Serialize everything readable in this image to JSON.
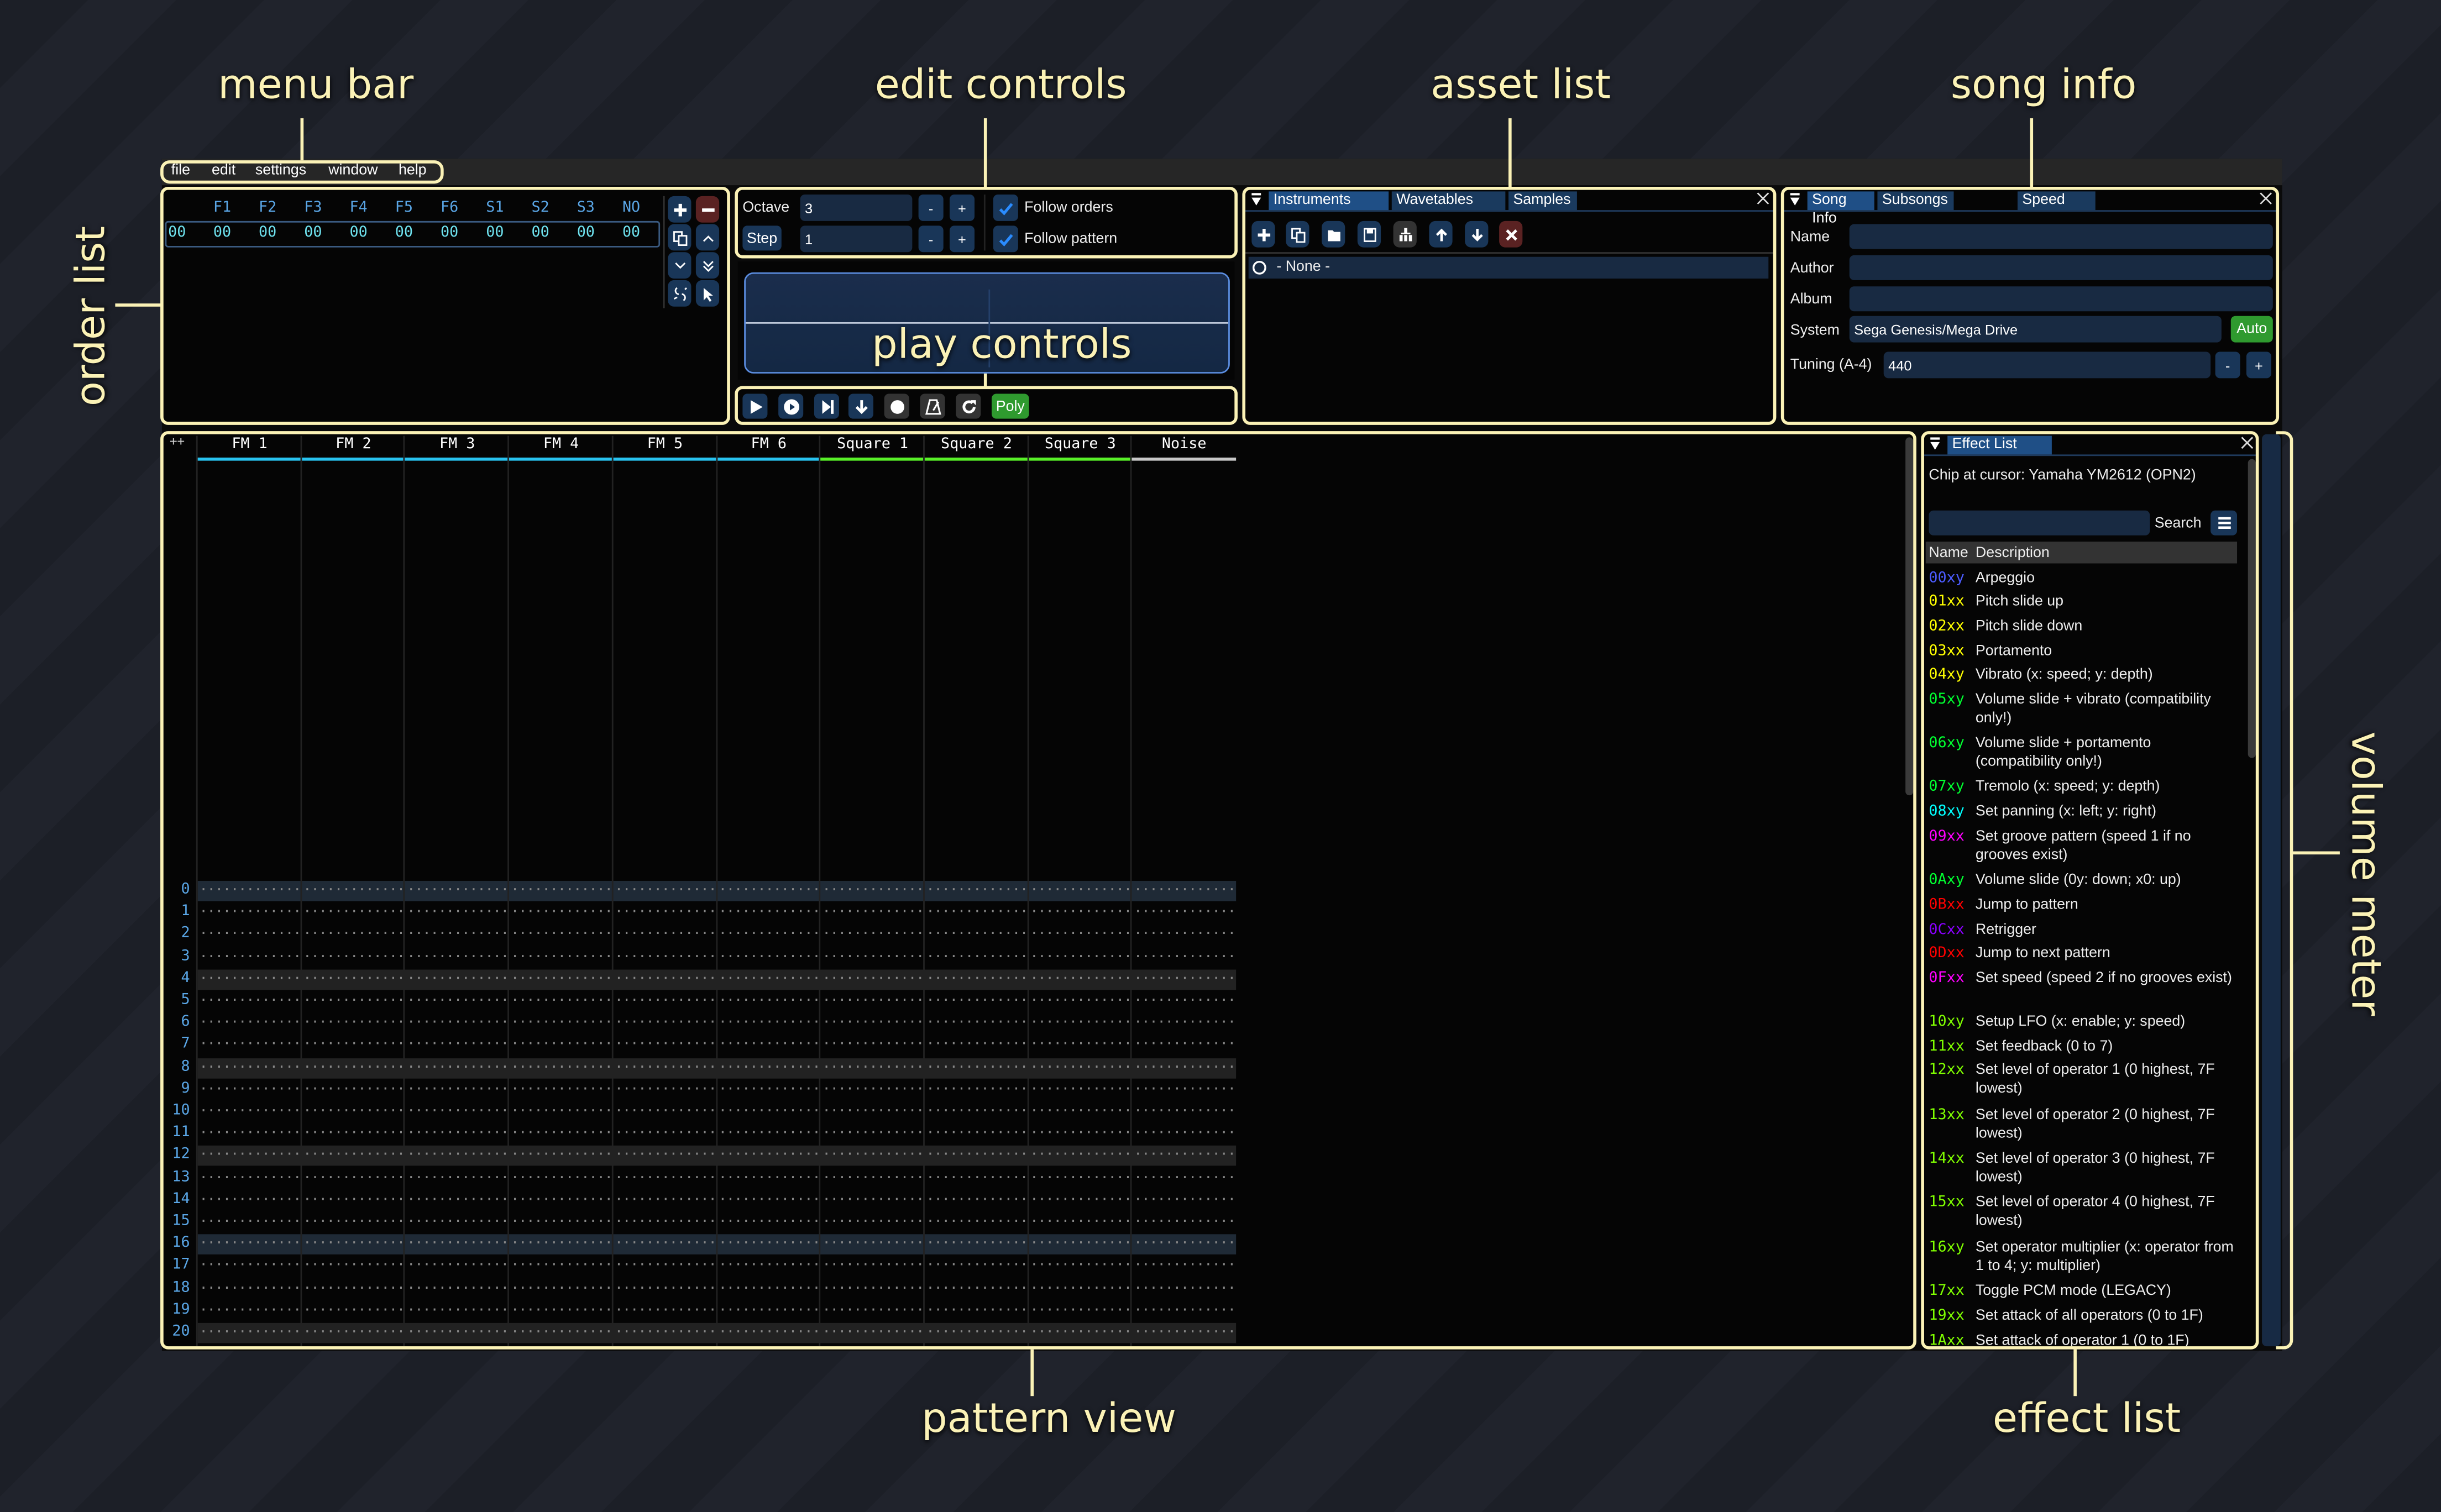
{
  "annotations": {
    "menu_bar": "menu bar",
    "edit_controls": "edit controls",
    "asset_list": "asset list",
    "song_info": "song info",
    "order_list": "order list",
    "play_controls": "play controls",
    "pattern_view": "pattern view",
    "effect_list": "effect list",
    "volume_meter": "volume meter"
  },
  "menu": [
    "file",
    "edit",
    "settings",
    "window",
    "help"
  ],
  "orders": {
    "headers": [
      "F1",
      "F2",
      "F3",
      "F4",
      "F5",
      "F6",
      "S1",
      "S2",
      "S3",
      "NO"
    ],
    "row_index": "00",
    "values": [
      "00",
      "00",
      "00",
      "00",
      "00",
      "00",
      "00",
      "00",
      "00",
      "00"
    ],
    "buttons": [
      "add-icon",
      "remove-icon",
      "duplicate-icon",
      "move-up-icon",
      "move-down-icon",
      "move-down-all-icon",
      "unlink-icon",
      "cursor-icon"
    ]
  },
  "edit": {
    "octave_label": "Octave",
    "octave_value": "3",
    "step_label": "Step",
    "step_value": "1",
    "minus": "-",
    "plus": "+",
    "follow_orders": "Follow orders",
    "follow_orders_checked": true,
    "follow_pattern": "Follow pattern",
    "follow_pattern_checked": true
  },
  "play": {
    "buttons": [
      "play-icon",
      "play-pattern-icon",
      "step-icon",
      "step-one-row-icon",
      "record-icon",
      "metronome-icon",
      "repeat-icon"
    ],
    "poly": "Poly",
    "poly_color": "#2f9a2f"
  },
  "assets": {
    "tabs": [
      "Instruments",
      "Wavetables",
      "Samples"
    ],
    "active_tab": "Instruments",
    "toolbar": [
      "add-icon",
      "duplicate-icon",
      "open-icon",
      "save-icon",
      "sitemap-icon",
      "move-up-icon",
      "move-down-icon",
      "delete-icon"
    ],
    "items": [
      "- None -"
    ]
  },
  "song": {
    "tabs": [
      "Song Info",
      "Subsongs",
      "Speed"
    ],
    "active_tab": "Song Info",
    "name_label": "Name",
    "name_value": "",
    "author_label": "Author",
    "author_value": "",
    "album_label": "Album",
    "album_value": "",
    "system_label": "System",
    "system_value": "Sega Genesis/Mega Drive",
    "auto": "Auto",
    "tuning_label": "Tuning (A-4)",
    "tuning_value": "440",
    "minus": "-",
    "plus": "+"
  },
  "pattern": {
    "corner": "++",
    "channels": [
      {
        "name": "FM 1",
        "color": "#28c3f0"
      },
      {
        "name": "FM 2",
        "color": "#28c3f0"
      },
      {
        "name": "FM 3",
        "color": "#28c3f0"
      },
      {
        "name": "FM 4",
        "color": "#28c3f0"
      },
      {
        "name": "FM 5",
        "color": "#28c3f0"
      },
      {
        "name": "FM 6",
        "color": "#28c3f0"
      },
      {
        "name": "Square 1",
        "color": "#58f028"
      },
      {
        "name": "Square 2",
        "color": "#58f028"
      },
      {
        "name": "Square 3",
        "color": "#58f028"
      },
      {
        "name": "Noise",
        "color": "#c8c8c8"
      }
    ],
    "rows": [
      "0",
      "1",
      "2",
      "3",
      "4",
      "5",
      "6",
      "7",
      "8",
      "9",
      "10",
      "11",
      "12",
      "13",
      "14",
      "15",
      "16",
      "17",
      "18",
      "19",
      "20"
    ],
    "empty_cell": "......................",
    "highlight_every": 4,
    "major_highlight_every": 16
  },
  "effects": {
    "title": "Effect List",
    "chip": "Chip at cursor: Yamaha YM2612 (OPN2)",
    "search_label": "Search",
    "search_value": "",
    "col_name": "Name",
    "col_desc": "Description",
    "items": [
      {
        "code": "00xy",
        "desc": "Arpeggio",
        "color": "#4c5cff"
      },
      {
        "code": "01xx",
        "desc": "Pitch slide up",
        "color": "#ffff00"
      },
      {
        "code": "02xx",
        "desc": "Pitch slide down",
        "color": "#ffff00"
      },
      {
        "code": "03xx",
        "desc": "Portamento",
        "color": "#ffff00"
      },
      {
        "code": "04xy",
        "desc": "Vibrato (x: speed; y: depth)",
        "color": "#ffff00"
      },
      {
        "code": "05xy",
        "desc": "Volume slide + vibrato (compatibility only!)",
        "color": "#00ff30"
      },
      {
        "code": "06xy",
        "desc": "Volume slide + portamento (compatibility only!)",
        "color": "#00ff30"
      },
      {
        "code": "07xy",
        "desc": "Tremolo (x: speed; y: depth)",
        "color": "#00ff30"
      },
      {
        "code": "08xy",
        "desc": "Set panning (x: left; y: right)",
        "color": "#00ffff"
      },
      {
        "code": "09xx",
        "desc": "Set groove pattern (speed 1 if no grooves exist)",
        "color": "#ff00ff"
      },
      {
        "code": "0Axy",
        "desc": "Volume slide (0y: down; x0: up)",
        "color": "#00ff30"
      },
      {
        "code": "0Bxx",
        "desc": "Jump to pattern",
        "color": "#ff0000"
      },
      {
        "code": "0Cxx",
        "desc": "Retrigger",
        "color": "#8a00ff"
      },
      {
        "code": "0Dxx",
        "desc": "Jump to next pattern",
        "color": "#ff0000"
      },
      {
        "code": "0Fxx",
        "desc": "Set speed (speed 2 if no grooves exist)",
        "color": "#ff00ff"
      },
      {
        "code": "10xy",
        "desc": "Setup LFO (x: enable; y: speed)",
        "color": "#80ff00"
      },
      {
        "code": "11xx",
        "desc": "Set feedback (0 to 7)",
        "color": "#80ff00"
      },
      {
        "code": "12xx",
        "desc": "Set level of operator 1 (0 highest, 7F lowest)",
        "color": "#80ff00"
      },
      {
        "code": "13xx",
        "desc": "Set level of operator 2 (0 highest, 7F lowest)",
        "color": "#80ff00"
      },
      {
        "code": "14xx",
        "desc": "Set level of operator 3 (0 highest, 7F lowest)",
        "color": "#80ff00"
      },
      {
        "code": "15xx",
        "desc": "Set level of operator 4 (0 highest, 7F lowest)",
        "color": "#80ff00"
      },
      {
        "code": "16xy",
        "desc": "Set operator multiplier (x: operator from 1 to 4; y: multiplier)",
        "color": "#80ff00"
      },
      {
        "code": "17xx",
        "desc": "Toggle PCM mode (LEGACY)",
        "color": "#80ff00"
      },
      {
        "code": "19xx",
        "desc": "Set attack of all operators (0 to 1F)",
        "color": "#80ff00"
      },
      {
        "code": "1Axx",
        "desc": "Set attack of operator 1 (0 to 1F)",
        "color": "#80ff00"
      }
    ]
  },
  "colors": {
    "highlight": "#fbf2b6",
    "accent": "#1f4f86",
    "button": "#193658"
  }
}
